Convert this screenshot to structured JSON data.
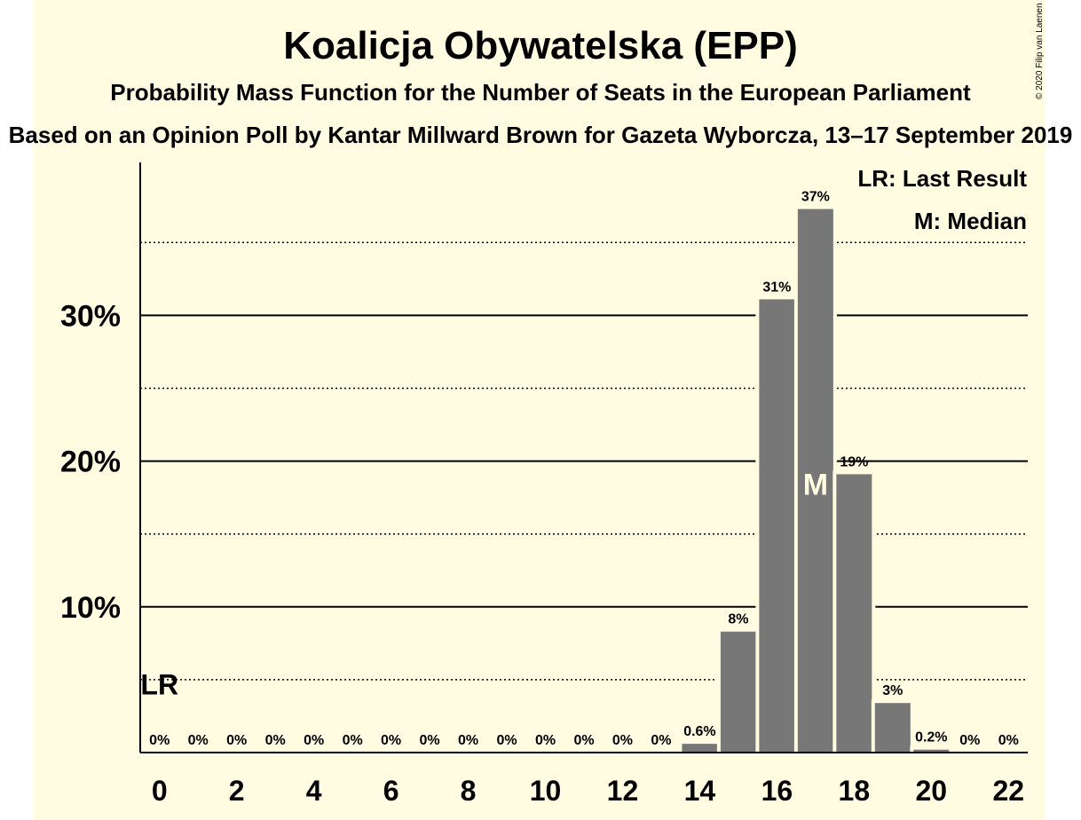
{
  "chart_data": {
    "type": "bar",
    "title": "Koalicja Obywatelska (EPP)",
    "subtitle": "Probability Mass Function for the Number of Seats in the European Parliament",
    "subtitle2": "Based on an Opinion Poll by Kantar Millward Brown for Gazeta Wyborcza, 13–17 September 2019",
    "copyright": "© 2020 Filip van Laenen",
    "legend": {
      "placement": "top-right",
      "entries": [
        "LR: Last Result",
        "M: Median"
      ]
    },
    "categories": [
      0,
      1,
      2,
      3,
      4,
      5,
      6,
      7,
      8,
      9,
      10,
      11,
      12,
      13,
      14,
      15,
      16,
      17,
      18,
      19,
      20,
      21,
      22
    ],
    "values": [
      0,
      0,
      0,
      0,
      0,
      0,
      0,
      0,
      0,
      0,
      0,
      0,
      0,
      0,
      0.6,
      8.3,
      31.1,
      37.3,
      19.1,
      3.4,
      0.2,
      0,
      0
    ],
    "data_labels": [
      "0%",
      "0%",
      "0%",
      "0%",
      "0%",
      "0%",
      "0%",
      "0%",
      "0%",
      "0%",
      "0%",
      "0%",
      "0%",
      "0%",
      "0.6%",
      "8%",
      "31%",
      "37%",
      "19%",
      "3%",
      "0.2%",
      "0%",
      "0%"
    ],
    "x_tick_labels": [
      "0",
      "2",
      "4",
      "6",
      "8",
      "10",
      "12",
      "14",
      "16",
      "18",
      "20",
      "22"
    ],
    "x_ticks": [
      0,
      2,
      4,
      6,
      8,
      10,
      12,
      14,
      16,
      18,
      20,
      22
    ],
    "y_ticks": [
      10,
      20,
      30
    ],
    "y_tick_labels": [
      "10%",
      "20%",
      "30%"
    ],
    "y_minor_gridlines": [
      5,
      15,
      25,
      35
    ],
    "ylim": [
      0,
      40.5
    ],
    "xlim": [
      -0.5,
      22.5
    ],
    "last_result": {
      "seat": 0,
      "label": "LR"
    },
    "median": {
      "seat": 17,
      "label": "M"
    },
    "colors": {
      "background": "#FFFCE1",
      "bar": "#777777",
      "grid": "#000000"
    }
  }
}
